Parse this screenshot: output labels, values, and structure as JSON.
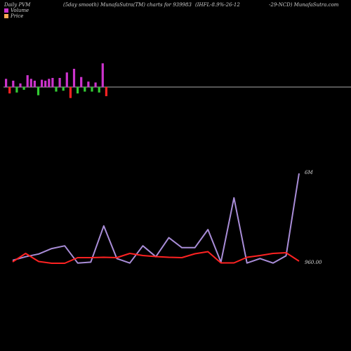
{
  "header": {
    "left": "Daily PVM",
    "mid": "(5day smooth) MunafaSutra(TM) charts for 939983",
    "right": "(IHFL-8.9%-26-12",
    "far_right": "-29-NCD) MunafaSutra.com"
  },
  "legend": {
    "volume_label": "Volume",
    "price_label": "Price",
    "volume_color": "#cc33cc",
    "price_color": "#ffaa55"
  },
  "colors": {
    "up_bar": "#cc33cc",
    "down_bar": "#33cc33",
    "red_bar": "#ff2222",
    "axis": "#aaaaaa",
    "volume_line": "#a98dd8",
    "price_line": "#ff2222"
  },
  "chart_data": {
    "type": "line",
    "pvm_bars": [
      {
        "value": 0.45,
        "color": "up"
      },
      {
        "value": -0.35,
        "color": "red"
      },
      {
        "value": 0.35,
        "color": "up"
      },
      {
        "value": -0.3,
        "color": "down"
      },
      {
        "value": 0.2,
        "color": "up"
      },
      {
        "value": -0.15,
        "color": "down"
      },
      {
        "value": 0.65,
        "color": "up"
      },
      {
        "value": 0.45,
        "color": "up"
      },
      {
        "value": 0.35,
        "color": "up"
      },
      {
        "value": -0.45,
        "color": "down"
      },
      {
        "value": 0.4,
        "color": "up"
      },
      {
        "value": 0.35,
        "color": "up"
      },
      {
        "value": 0.45,
        "color": "up"
      },
      {
        "value": 0.5,
        "color": "up"
      },
      {
        "value": -0.25,
        "color": "down"
      },
      {
        "value": 0.5,
        "color": "up"
      },
      {
        "value": -0.2,
        "color": "down"
      },
      {
        "value": 0.8,
        "color": "up"
      },
      {
        "value": -0.6,
        "color": "red"
      },
      {
        "value": 1.0,
        "color": "up"
      },
      {
        "value": -0.35,
        "color": "down"
      },
      {
        "value": 0.55,
        "color": "up"
      },
      {
        "value": -0.25,
        "color": "down"
      },
      {
        "value": 0.3,
        "color": "up"
      },
      {
        "value": -0.25,
        "color": "down"
      },
      {
        "value": 0.25,
        "color": "up"
      },
      {
        "value": -0.3,
        "color": "down"
      },
      {
        "value": 1.3,
        "color": "up"
      },
      {
        "value": -0.5,
        "color": "red"
      }
    ],
    "volume_series": {
      "name": "Volume",
      "values": [
        0.04,
        0.08,
        0.11,
        0.17,
        0.2,
        0.01,
        0.02,
        0.42,
        0.06,
        0.01,
        0.2,
        0.08,
        0.29,
        0.18,
        0.18,
        0.38,
        0.02,
        0.73,
        0.01,
        0.06,
        0.01,
        0.09,
        1.0
      ]
    },
    "price_series": {
      "name": "Price",
      "values": [
        960.0,
        972.0,
        960.5,
        958.0,
        958.0,
        966.0,
        966.0,
        966.5,
        966.0,
        972.0,
        969.0,
        967.5,
        966.5,
        966.0,
        971.5,
        974.5,
        958.5,
        958.5,
        966.5,
        969.0,
        972.0,
        973.0,
        961.0
      ]
    },
    "y_labels": {
      "volume_max": "6M",
      "price_ref": "960.00"
    }
  }
}
